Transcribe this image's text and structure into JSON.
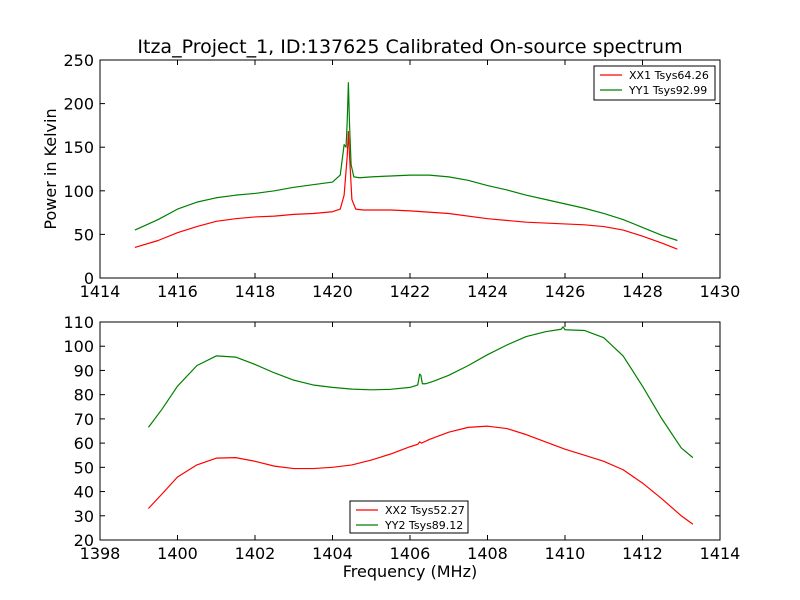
{
  "chart_data": [
    {
      "type": "line",
      "title": "Itza_Project_1, ID:137625 Calibrated On-source spectrum",
      "xlabel": "",
      "ylabel": "Power in Kelvin",
      "xlim": [
        1414,
        1430
      ],
      "ylim": [
        0,
        250
      ],
      "xticks": [
        "1414",
        "1416",
        "1418",
        "1420",
        "1422",
        "1424",
        "1426",
        "1428",
        "1430"
      ],
      "yticks": [
        "0",
        "50",
        "100",
        "150",
        "200",
        "250"
      ],
      "grid": false,
      "legend_position": "top-right",
      "series": [
        {
          "name": "XX1 Tsys64.26",
          "color": "#ff0000",
          "x": [
            1414.9,
            1415.5,
            1416,
            1416.5,
            1417,
            1417.5,
            1418,
            1418.5,
            1419,
            1419.5,
            1420,
            1420.2,
            1420.3,
            1420.38,
            1420.41,
            1420.44,
            1420.5,
            1420.6,
            1420.8,
            1421.5,
            1422,
            1423,
            1424,
            1425,
            1426,
            1426.5,
            1427,
            1427.5,
            1428,
            1428.5,
            1428.9
          ],
          "y": [
            35,
            43,
            52,
            59,
            65,
            68,
            70,
            71,
            73,
            74,
            76,
            79,
            95,
            140,
            168,
            140,
            90,
            79,
            78,
            78,
            77,
            74,
            68,
            64,
            62,
            61,
            59,
            55,
            48,
            40,
            33
          ]
        },
        {
          "name": "YY1 Tsys92.99",
          "color": "#008000",
          "x": [
            1414.9,
            1415.5,
            1416,
            1416.5,
            1417,
            1417.5,
            1418,
            1418.5,
            1419,
            1419.5,
            1420,
            1420.2,
            1420.3,
            1420.35,
            1420.38,
            1420.41,
            1420.44,
            1420.48,
            1420.55,
            1420.7,
            1421,
            1421.5,
            1422,
            1422.5,
            1423,
            1423.5,
            1424,
            1424.5,
            1425,
            1425.5,
            1426,
            1426.5,
            1427,
            1427.5,
            1428,
            1428.5,
            1428.9
          ],
          "y": [
            55,
            67,
            79,
            87,
            92,
            95,
            97,
            100,
            104,
            107,
            110,
            118,
            153,
            150,
            180,
            224,
            175,
            130,
            116,
            115,
            116,
            117,
            118,
            118,
            116,
            112,
            106,
            101,
            95,
            90,
            85,
            80,
            74,
            67,
            58,
            49,
            43
          ]
        }
      ]
    },
    {
      "type": "line",
      "title": "",
      "xlabel": "Frequency (MHz)",
      "ylabel": "",
      "xlim": [
        1398,
        1414
      ],
      "ylim": [
        20,
        110
      ],
      "xticks": [
        "1398",
        "1400",
        "1402",
        "1404",
        "1406",
        "1408",
        "1410",
        "1412",
        "1414"
      ],
      "yticks": [
        "20",
        "30",
        "40",
        "50",
        "60",
        "70",
        "80",
        "90",
        "100",
        "110"
      ],
      "grid": false,
      "legend_position": "bottom-center",
      "series": [
        {
          "name": "XX2 Tsys52.27",
          "color": "#ff0000",
          "x": [
            1399.25,
            1399.6,
            1400,
            1400.5,
            1401,
            1401.5,
            1402,
            1402.5,
            1403,
            1403.5,
            1404,
            1404.5,
            1405,
            1405.5,
            1406,
            1406.2,
            1406.25,
            1406.3,
            1406.5,
            1407,
            1407.5,
            1408,
            1408.5,
            1409,
            1409.5,
            1410,
            1410.5,
            1411,
            1411.5,
            1412,
            1412.5,
            1413,
            1413.3
          ],
          "y": [
            33,
            39,
            46,
            51,
            53.8,
            54,
            52.5,
            50.5,
            49.5,
            49.5,
            50,
            51,
            53,
            55.5,
            58.5,
            59.5,
            60.5,
            60,
            61.5,
            64.5,
            66.5,
            67,
            66,
            63.5,
            60.5,
            57.5,
            55,
            52.5,
            49,
            43.5,
            37,
            30,
            26.5
          ]
        },
        {
          "name": "YY2 Tsys89.12",
          "color": "#008000",
          "x": [
            1399.25,
            1399.6,
            1400,
            1400.5,
            1401,
            1401.5,
            1402,
            1402.5,
            1403,
            1403.5,
            1404,
            1404.5,
            1405,
            1405.5,
            1406,
            1406.2,
            1406.25,
            1406.28,
            1406.32,
            1406.4,
            1406.6,
            1407,
            1407.5,
            1408,
            1408.5,
            1409,
            1409.5,
            1409.9,
            1409.95,
            1410,
            1410.5,
            1411,
            1411.5,
            1412,
            1412.5,
            1413,
            1413.3
          ],
          "y": [
            66.5,
            74,
            83.5,
            92,
            96,
            95.5,
            92.5,
            89,
            86,
            84,
            83,
            82.3,
            82,
            82.2,
            83,
            84,
            88.5,
            88,
            84.5,
            84.5,
            85.5,
            88,
            92,
            96.5,
            100.5,
            104,
            106,
            107,
            108,
            106.8,
            106.5,
            103.5,
            96,
            83.5,
            70,
            58,
            54
          ]
        }
      ]
    }
  ]
}
